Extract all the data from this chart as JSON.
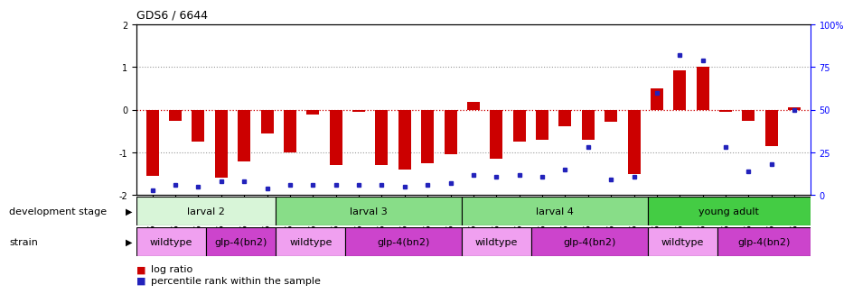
{
  "title": "GDS6 / 6644",
  "samples": [
    "GSM460",
    "GSM461",
    "GSM462",
    "GSM463",
    "GSM464",
    "GSM465",
    "GSM445",
    "GSM449",
    "GSM453",
    "GSM466",
    "GSM447",
    "GSM451",
    "GSM455",
    "GSM459",
    "GSM446",
    "GSM450",
    "GSM454",
    "GSM457",
    "GSM448",
    "GSM452",
    "GSM456",
    "GSM458",
    "GSM438",
    "GSM441",
    "GSM442",
    "GSM439",
    "GSM440",
    "GSM443",
    "GSM444"
  ],
  "log_ratios": [
    -1.55,
    -0.25,
    -0.75,
    -1.6,
    -1.2,
    -0.55,
    -1.0,
    -0.12,
    -1.3,
    -0.05,
    -1.3,
    -1.4,
    -1.25,
    -1.05,
    0.18,
    -1.15,
    -0.75,
    -0.7,
    -0.38,
    -0.7,
    -0.28,
    -1.5,
    0.5,
    0.92,
    1.0,
    -0.05,
    -0.25,
    -0.85,
    0.05
  ],
  "percentile_ranks": [
    3,
    6,
    5,
    8,
    8,
    4,
    6,
    6,
    6,
    6,
    6,
    5,
    6,
    7,
    12,
    11,
    12,
    11,
    15,
    28,
    9,
    11,
    60,
    82,
    79,
    28,
    14,
    18,
    50
  ],
  "development_stages": [
    {
      "label": "larval 2",
      "start": 0,
      "end": 6
    },
    {
      "label": "larval 3",
      "start": 6,
      "end": 14
    },
    {
      "label": "larval 4",
      "start": 14,
      "end": 22
    },
    {
      "label": "young adult",
      "start": 22,
      "end": 29
    }
  ],
  "stage_colors": {
    "larval 2": "#d8f5d8",
    "larval 3": "#88dd88",
    "larval 4": "#88dd88",
    "young adult": "#44cc44"
  },
  "strains": [
    {
      "label": "wildtype",
      "start": 0,
      "end": 3
    },
    {
      "label": "glp-4(bn2)",
      "start": 3,
      "end": 6
    },
    {
      "label": "wildtype",
      "start": 6,
      "end": 9
    },
    {
      "label": "glp-4(bn2)",
      "start": 9,
      "end": 14
    },
    {
      "label": "wildtype",
      "start": 14,
      "end": 17
    },
    {
      "label": "glp-4(bn2)",
      "start": 17,
      "end": 22
    },
    {
      "label": "wildtype",
      "start": 22,
      "end": 25
    },
    {
      "label": "glp-4(bn2)",
      "start": 25,
      "end": 29
    }
  ],
  "strain_colors": {
    "wildtype": "#f0a0f0",
    "glp-4(bn2)": "#cc44cc"
  },
  "ylim": [
    -2,
    2
  ],
  "y2lim": [
    0,
    100
  ],
  "bar_color": "#cc0000",
  "dot_color": "#2222bb",
  "bar_width": 0.55,
  "background_color": "#ffffff",
  "dotted_line_values": [
    1.0,
    -1.0
  ],
  "zero_line_color": "#cc0000",
  "title_fontsize": 9,
  "tick_fontsize": 7,
  "label_fontsize": 8
}
